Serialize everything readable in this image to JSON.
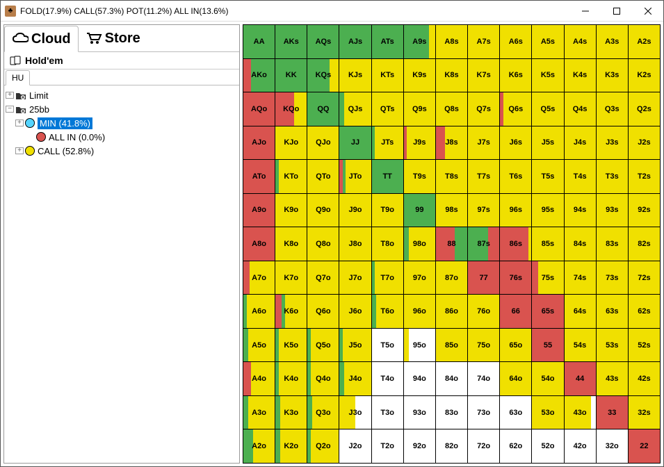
{
  "window": {
    "title": "FOLD(17.9%) CALL(57.3%) POT(11.2%) ALL IN(13.6%)"
  },
  "tabs": {
    "cloud": "Cloud",
    "store": "Store"
  },
  "subtab1": "Hold'em",
  "subtab2": "HU",
  "tree": {
    "limit": "Limit",
    "bb": "25bb",
    "min": "MIN (41.8%)",
    "allin": "ALL IN (0.0%)",
    "call": "CALL (52.8%)"
  },
  "colors": {
    "fold": "#ffffff",
    "call": "#f0e000",
    "pot": "#4caf50",
    "allin": "#d9534f",
    "min_circle": "#55d4ff",
    "allin_circle": "#d9534f",
    "call_circle": "#f0e000"
  },
  "ranks": [
    "A",
    "K",
    "Q",
    "J",
    "T",
    "9",
    "8",
    "7",
    "6",
    "5",
    "4",
    "3",
    "2"
  ],
  "grid_comment": "Each cell lists color segments left-to-right as [colorKey, widthFraction]. Keys: fold,call,pot,allin.",
  "cells": [
    [
      [
        [
          "pot",
          1
        ]
      ],
      [
        [
          "pot",
          1
        ]
      ],
      [
        [
          "pot",
          1
        ]
      ],
      [
        [
          "pot",
          1
        ]
      ],
      [
        [
          "pot",
          1
        ]
      ],
      [
        [
          "pot",
          0.8
        ],
        [
          "call",
          0.2
        ]
      ],
      [
        [
          "call",
          1
        ]
      ],
      [
        [
          "call",
          1
        ]
      ],
      [
        [
          "call",
          1
        ]
      ],
      [
        [
          "call",
          1
        ]
      ],
      [
        [
          "call",
          1
        ]
      ],
      [
        [
          "call",
          1
        ]
      ],
      [
        [
          "call",
          1
        ]
      ]
    ],
    [
      [
        [
          "allin",
          0.25
        ],
        [
          "pot",
          0.75
        ]
      ],
      [
        [
          "pot",
          1
        ]
      ],
      [
        [
          "pot",
          0.7
        ],
        [
          "call",
          0.3
        ]
      ],
      [
        [
          "call",
          1
        ]
      ],
      [
        [
          "call",
          1
        ]
      ],
      [
        [
          "call",
          1
        ]
      ],
      [
        [
          "call",
          1
        ]
      ],
      [
        [
          "call",
          1
        ]
      ],
      [
        [
          "call",
          1
        ]
      ],
      [
        [
          "call",
          1
        ]
      ],
      [
        [
          "call",
          1
        ]
      ],
      [
        [
          "call",
          1
        ]
      ],
      [
        [
          "call",
          1
        ]
      ]
    ],
    [
      [
        [
          "allin",
          1
        ]
      ],
      [
        [
          "allin",
          0.6
        ],
        [
          "call",
          0.4
        ]
      ],
      [
        [
          "pot",
          1
        ]
      ],
      [
        [
          "pot",
          0.15
        ],
        [
          "call",
          0.85
        ]
      ],
      [
        [
          "call",
          1
        ]
      ],
      [
        [
          "call",
          1
        ]
      ],
      [
        [
          "call",
          1
        ]
      ],
      [
        [
          "call",
          1
        ]
      ],
      [
        [
          "allin",
          0.1
        ],
        [
          "call",
          0.9
        ]
      ],
      [
        [
          "call",
          1
        ]
      ],
      [
        [
          "call",
          1
        ]
      ],
      [
        [
          "call",
          1
        ]
      ],
      [
        [
          "call",
          1
        ]
      ]
    ],
    [
      [
        [
          "allin",
          1
        ]
      ],
      [
        [
          "call",
          1
        ]
      ],
      [
        [
          "call",
          1
        ]
      ],
      [
        [
          "pot",
          1
        ]
      ],
      [
        [
          "pot",
          0.1
        ],
        [
          "call",
          0.9
        ]
      ],
      [
        [
          "allin",
          0.1
        ],
        [
          "call",
          0.9
        ]
      ],
      [
        [
          "allin",
          0.3
        ],
        [
          "call",
          0.7
        ]
      ],
      [
        [
          "call",
          1
        ]
      ],
      [
        [
          "call",
          1
        ]
      ],
      [
        [
          "call",
          1
        ]
      ],
      [
        [
          "call",
          1
        ]
      ],
      [
        [
          "call",
          1
        ]
      ],
      [
        [
          "call",
          1
        ]
      ]
    ],
    [
      [
        [
          "allin",
          1
        ]
      ],
      [
        [
          "pot",
          0.1
        ],
        [
          "call",
          0.9
        ]
      ],
      [
        [
          "call",
          1
        ]
      ],
      [
        [
          "allin",
          0.1
        ],
        [
          "pot",
          0.1
        ],
        [
          "call",
          0.8
        ]
      ],
      [
        [
          "pot",
          1
        ]
      ],
      [
        [
          "call",
          1
        ]
      ],
      [
        [
          "call",
          1
        ]
      ],
      [
        [
          "call",
          1
        ]
      ],
      [
        [
          "call",
          1
        ]
      ],
      [
        [
          "call",
          1
        ]
      ],
      [
        [
          "call",
          1
        ]
      ],
      [
        [
          "call",
          1
        ]
      ],
      [
        [
          "call",
          1
        ]
      ]
    ],
    [
      [
        [
          "allin",
          1
        ]
      ],
      [
        [
          "call",
          1
        ]
      ],
      [
        [
          "call",
          1
        ]
      ],
      [
        [
          "call",
          1
        ]
      ],
      [
        [
          "call",
          1
        ]
      ],
      [
        [
          "pot",
          1
        ]
      ],
      [
        [
          "call",
          1
        ]
      ],
      [
        [
          "call",
          1
        ]
      ],
      [
        [
          "call",
          1
        ]
      ],
      [
        [
          "call",
          1
        ]
      ],
      [
        [
          "call",
          1
        ]
      ],
      [
        [
          "call",
          1
        ]
      ],
      [
        [
          "call",
          1
        ]
      ]
    ],
    [
      [
        [
          "allin",
          1
        ]
      ],
      [
        [
          "call",
          1
        ]
      ],
      [
        [
          "call",
          1
        ]
      ],
      [
        [
          "call",
          1
        ]
      ],
      [
        [
          "call",
          1
        ]
      ],
      [
        [
          "pot",
          0.15
        ],
        [
          "call",
          0.85
        ]
      ],
      [
        [
          "allin",
          0.6
        ],
        [
          "pot",
          0.4
        ]
      ],
      [
        [
          "pot",
          0.65
        ],
        [
          "allin",
          0.35
        ]
      ],
      [
        [
          "allin",
          0.9
        ],
        [
          "call",
          0.1
        ]
      ],
      [
        [
          "call",
          1
        ]
      ],
      [
        [
          "call",
          1
        ]
      ],
      [
        [
          "call",
          1
        ]
      ],
      [
        [
          "call",
          1
        ]
      ]
    ],
    [
      [
        [
          "allin",
          0.2
        ],
        [
          "call",
          0.8
        ]
      ],
      [
        [
          "call",
          1
        ]
      ],
      [
        [
          "call",
          1
        ]
      ],
      [
        [
          "call",
          1
        ]
      ],
      [
        [
          "pot",
          0.1
        ],
        [
          "call",
          0.9
        ]
      ],
      [
        [
          "call",
          1
        ]
      ],
      [
        [
          "call",
          1
        ]
      ],
      [
        [
          "allin",
          1
        ]
      ],
      [
        [
          "allin",
          1
        ]
      ],
      [
        [
          "allin",
          0.2
        ],
        [
          "call",
          0.8
        ]
      ],
      [
        [
          "call",
          1
        ]
      ],
      [
        [
          "call",
          1
        ]
      ],
      [
        [
          "call",
          1
        ]
      ]
    ],
    [
      [
        [
          "pot",
          0.1
        ],
        [
          "call",
          0.9
        ]
      ],
      [
        [
          "allin",
          0.2
        ],
        [
          "pot",
          0.1
        ],
        [
          "call",
          0.7
        ]
      ],
      [
        [
          "call",
          1
        ]
      ],
      [
        [
          "call",
          1
        ]
      ],
      [
        [
          "pot",
          0.15
        ],
        [
          "call",
          0.85
        ]
      ],
      [
        [
          "call",
          1
        ]
      ],
      [
        [
          "call",
          1
        ]
      ],
      [
        [
          "call",
          1
        ]
      ],
      [
        [
          "allin",
          1
        ]
      ],
      [
        [
          "allin",
          1
        ]
      ],
      [
        [
          "call",
          1
        ]
      ],
      [
        [
          "call",
          1
        ]
      ],
      [
        [
          "call",
          1
        ]
      ]
    ],
    [
      [
        [
          "pot",
          0.15
        ],
        [
          "call",
          0.85
        ]
      ],
      [
        [
          "pot",
          0.1
        ],
        [
          "call",
          0.9
        ]
      ],
      [
        [
          "pot",
          0.1
        ],
        [
          "call",
          0.9
        ]
      ],
      [
        [
          "pot",
          0.1
        ],
        [
          "call",
          0.9
        ]
      ],
      [
        [
          "fold",
          1
        ]
      ],
      [
        [
          "call",
          0.15
        ],
        [
          "fold",
          0.85
        ]
      ],
      [
        [
          "call",
          1
        ]
      ],
      [
        [
          "call",
          1
        ]
      ],
      [
        [
          "call",
          1
        ]
      ],
      [
        [
          "allin",
          1
        ]
      ],
      [
        [
          "call",
          1
        ]
      ],
      [
        [
          "call",
          1
        ]
      ],
      [
        [
          "call",
          1
        ]
      ]
    ],
    [
      [
        [
          "allin",
          0.25
        ],
        [
          "call",
          0.75
        ]
      ],
      [
        [
          "pot",
          0.1
        ],
        [
          "call",
          0.9
        ]
      ],
      [
        [
          "pot",
          0.1
        ],
        [
          "call",
          0.9
        ]
      ],
      [
        [
          "pot",
          0.15
        ],
        [
          "call",
          0.85
        ]
      ],
      [
        [
          "fold",
          1
        ]
      ],
      [
        [
          "fold",
          1
        ]
      ],
      [
        [
          "fold",
          1
        ]
      ],
      [
        [
          "fold",
          1
        ]
      ],
      [
        [
          "call",
          1
        ]
      ],
      [
        [
          "call",
          1
        ]
      ],
      [
        [
          "allin",
          1
        ]
      ],
      [
        [
          "call",
          1
        ]
      ],
      [
        [
          "call",
          1
        ]
      ]
    ],
    [
      [
        [
          "pot",
          0.15
        ],
        [
          "call",
          0.85
        ]
      ],
      [
        [
          "pot",
          0.15
        ],
        [
          "call",
          0.85
        ]
      ],
      [
        [
          "pot",
          0.15
        ],
        [
          "call",
          0.85
        ]
      ],
      [
        [
          "call",
          0.5
        ],
        [
          "fold",
          0.5
        ]
      ],
      [
        [
          "fold",
          1
        ]
      ],
      [
        [
          "fold",
          1
        ]
      ],
      [
        [
          "fold",
          1
        ]
      ],
      [
        [
          "fold",
          1
        ]
      ],
      [
        [
          "fold",
          1
        ]
      ],
      [
        [
          "call",
          1
        ]
      ],
      [
        [
          "call",
          0.85
        ],
        [
          "fold",
          0.15
        ]
      ],
      [
        [
          "allin",
          1
        ]
      ],
      [
        [
          "call",
          1
        ]
      ]
    ],
    [
      [
        [
          "pot",
          0.3
        ],
        [
          "call",
          0.7
        ]
      ],
      [
        [
          "pot",
          0.15
        ],
        [
          "call",
          0.85
        ]
      ],
      [
        [
          "pot",
          0.1
        ],
        [
          "call",
          0.9
        ]
      ],
      [
        [
          "fold",
          1
        ]
      ],
      [
        [
          "fold",
          1
        ]
      ],
      [
        [
          "fold",
          1
        ]
      ],
      [
        [
          "fold",
          1
        ]
      ],
      [
        [
          "fold",
          1
        ]
      ],
      [
        [
          "fold",
          1
        ]
      ],
      [
        [
          "fold",
          1
        ]
      ],
      [
        [
          "fold",
          1
        ]
      ],
      [
        [
          "fold",
          1
        ]
      ],
      [
        [
          "allin",
          1
        ]
      ]
    ]
  ]
}
